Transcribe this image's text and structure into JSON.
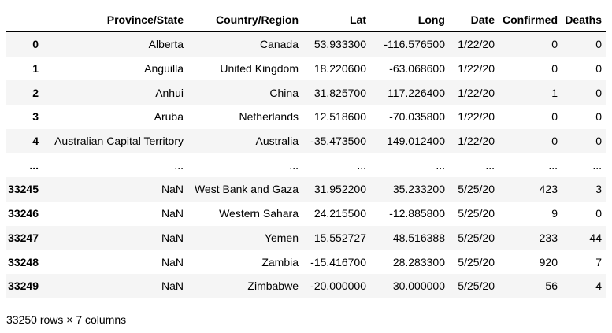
{
  "dataframe": {
    "columns": [
      "",
      "Province/State",
      "Country/Region",
      "Lat",
      "Long",
      "Date",
      "Confirmed",
      "Deaths"
    ],
    "rows": [
      {
        "index": "0",
        "province_state": "Alberta",
        "country_region": "Canada",
        "lat": "53.933300",
        "long": "-116.576500",
        "date": "1/22/20",
        "confirmed": "0",
        "deaths": "0"
      },
      {
        "index": "1",
        "province_state": "Anguilla",
        "country_region": "United Kingdom",
        "lat": "18.220600",
        "long": "-63.068600",
        "date": "1/22/20",
        "confirmed": "0",
        "deaths": "0"
      },
      {
        "index": "2",
        "province_state": "Anhui",
        "country_region": "China",
        "lat": "31.825700",
        "long": "117.226400",
        "date": "1/22/20",
        "confirmed": "1",
        "deaths": "0"
      },
      {
        "index": "3",
        "province_state": "Aruba",
        "country_region": "Netherlands",
        "lat": "12.518600",
        "long": "-70.035800",
        "date": "1/22/20",
        "confirmed": "0",
        "deaths": "0"
      },
      {
        "index": "4",
        "province_state": "Australian Capital Territory",
        "country_region": "Australia",
        "lat": "-35.473500",
        "long": "149.012400",
        "date": "1/22/20",
        "confirmed": "0",
        "deaths": "0"
      },
      {
        "index": "...",
        "province_state": "...",
        "country_region": "...",
        "lat": "...",
        "long": "...",
        "date": "...",
        "confirmed": "...",
        "deaths": "..."
      },
      {
        "index": "33245",
        "province_state": "NaN",
        "country_region": "West Bank and Gaza",
        "lat": "31.952200",
        "long": "35.233200",
        "date": "5/25/20",
        "confirmed": "423",
        "deaths": "3"
      },
      {
        "index": "33246",
        "province_state": "NaN",
        "country_region": "Western Sahara",
        "lat": "24.215500",
        "long": "-12.885800",
        "date": "5/25/20",
        "confirmed": "9",
        "deaths": "0"
      },
      {
        "index": "33247",
        "province_state": "NaN",
        "country_region": "Yemen",
        "lat": "15.552727",
        "long": "48.516388",
        "date": "5/25/20",
        "confirmed": "233",
        "deaths": "44"
      },
      {
        "index": "33248",
        "province_state": "NaN",
        "country_region": "Zambia",
        "lat": "-15.416700",
        "long": "28.283300",
        "date": "5/25/20",
        "confirmed": "920",
        "deaths": "7"
      },
      {
        "index": "33249",
        "province_state": "NaN",
        "country_region": "Zimbabwe",
        "lat": "-20.000000",
        "long": "30.000000",
        "date": "5/25/20",
        "confirmed": "56",
        "deaths": "4"
      }
    ],
    "shape_caption": "33250 rows × 7 columns"
  }
}
